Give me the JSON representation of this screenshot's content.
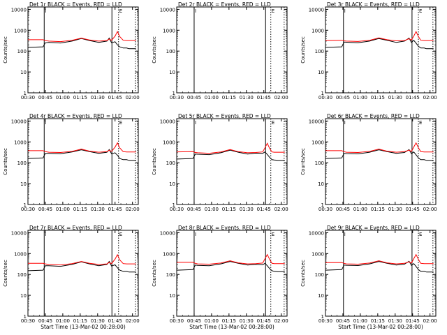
{
  "chart_data": {
    "type": "line",
    "layout": "grid 3x3",
    "x_ticks": [
      "00:30",
      "00:45",
      "01:00",
      "01:15",
      "01:30",
      "01:45",
      "02:00"
    ],
    "x_unit": "minutes after 00:28:00",
    "y_scale": "log",
    "y_ticks": [
      "1",
      "10",
      "100",
      "1000",
      "10000"
    ],
    "ylim": [
      1,
      13000
    ],
    "ylabel": "Counts/sec",
    "xlabel": "Start Time (13-Mar-02 00:28:00)",
    "series_colors": {
      "events": "#000000",
      "lld": "#ff0000"
    },
    "markers": {
      "left_label": "I",
      "right_label": "E"
    },
    "panels": [
      {
        "title": "Det 1r  BLACK = Events, RED = LLD",
        "has_data": true,
        "solid_lines": [
          16,
          74.3
        ],
        "dotted_lines": [
          80,
          94.5
        ],
        "show_xlabel": false,
        "x_data": [
          2,
          15,
          17,
          20,
          30,
          40,
          48,
          55,
          63,
          70,
          72,
          74,
          77,
          79,
          81,
          84,
          87,
          89,
          95
        ],
        "events": [
          150,
          160,
          250,
          260,
          245,
          300,
          400,
          320,
          260,
          300,
          420,
          250,
          280,
          200,
          160,
          140,
          140,
          130,
          130
        ],
        "lld": [
          350,
          350,
          320,
          300,
          285,
          330,
          420,
          340,
          300,
          320,
          380,
          330,
          520,
          860,
          500,
          330,
          320,
          320,
          320
        ]
      },
      {
        "title": "Det 2r  BLACK = Events, RED = LLD",
        "has_data": false,
        "solid_lines": [
          17,
          78.5
        ],
        "dotted_lines": [
          83,
          94.5
        ],
        "show_xlabel": false,
        "x_data": [],
        "events": [],
        "lld": []
      },
      {
        "title": "Det 3r  BLACK = Events, RED = LLD",
        "has_data": true,
        "solid_lines": [
          17.5,
          76.5
        ],
        "dotted_lines": [
          82,
          94.5
        ],
        "show_xlabel": false,
        "x_data": [
          2,
          16,
          18,
          20,
          30,
          40,
          48,
          55,
          63,
          70,
          74,
          76,
          78,
          80,
          82,
          84,
          87,
          89,
          95
        ],
        "events": [
          150,
          160,
          270,
          265,
          250,
          300,
          400,
          330,
          260,
          300,
          420,
          260,
          330,
          240,
          170,
          140,
          140,
          130,
          130
        ],
        "lld": [
          320,
          330,
          310,
          300,
          290,
          330,
          430,
          350,
          310,
          320,
          390,
          340,
          520,
          860,
          500,
          330,
          320,
          320,
          320
        ]
      },
      {
        "title": "Det 4r  BLACK = Events, RED = LLD",
        "has_data": true,
        "solid_lines": [
          16,
          74.3
        ],
        "dotted_lines": [
          80,
          94.5
        ],
        "show_xlabel": false,
        "x_data": [
          2,
          15,
          17,
          20,
          30,
          40,
          48,
          55,
          63,
          70,
          72,
          74,
          77,
          79,
          81,
          84,
          87,
          89,
          95
        ],
        "events": [
          160,
          170,
          280,
          280,
          270,
          330,
          420,
          340,
          280,
          320,
          430,
          270,
          300,
          230,
          160,
          140,
          140,
          130,
          130
        ],
        "lld": [
          380,
          380,
          340,
          320,
          310,
          350,
          450,
          360,
          320,
          340,
          400,
          350,
          560,
          900,
          520,
          340,
          330,
          330,
          330
        ]
      },
      {
        "title": "Det 5r  BLACK = Events, RED = LLD",
        "has_data": true,
        "solid_lines": [
          17,
          78.5
        ],
        "dotted_lines": [
          83,
          94.5
        ],
        "show_xlabel": false,
        "x_data": [
          2,
          16,
          18,
          20,
          30,
          40,
          48,
          55,
          63,
          70,
          76,
          78,
          80,
          82,
          84,
          86,
          89,
          95
        ],
        "events": [
          150,
          160,
          260,
          255,
          245,
          300,
          400,
          320,
          260,
          290,
          280,
          330,
          250,
          180,
          140,
          135,
          130,
          130
        ],
        "lld": [
          330,
          340,
          310,
          300,
          285,
          330,
          430,
          340,
          300,
          310,
          330,
          520,
          860,
          480,
          330,
          320,
          320,
          320
        ]
      },
      {
        "title": "Det 6r  BLACK = Events, RED = LLD",
        "has_data": true,
        "solid_lines": [
          17.5,
          76.5
        ],
        "dotted_lines": [
          82,
          94.5
        ],
        "show_xlabel": false,
        "x_data": [
          2,
          16,
          18,
          20,
          30,
          40,
          48,
          55,
          63,
          70,
          74,
          76,
          78,
          80,
          82,
          84,
          87,
          89,
          95
        ],
        "events": [
          160,
          170,
          280,
          275,
          265,
          320,
          420,
          340,
          280,
          310,
          430,
          270,
          330,
          240,
          170,
          140,
          140,
          130,
          130
        ],
        "lld": [
          380,
          380,
          340,
          320,
          310,
          350,
          450,
          360,
          320,
          340,
          400,
          350,
          560,
          900,
          520,
          340,
          330,
          330,
          330
        ]
      },
      {
        "title": "Det 7r  BLACK = Events, RED = LLD",
        "has_data": true,
        "solid_lines": [
          16,
          74.3
        ],
        "dotted_lines": [
          80,
          94.5
        ],
        "show_xlabel": true,
        "x_data": [
          2,
          15,
          17,
          20,
          30,
          40,
          48,
          55,
          63,
          70,
          72,
          74,
          77,
          79,
          81,
          84,
          87,
          89,
          95
        ],
        "events": [
          150,
          160,
          260,
          260,
          245,
          300,
          400,
          320,
          260,
          300,
          420,
          250,
          290,
          210,
          160,
          140,
          140,
          130,
          130
        ],
        "lld": [
          340,
          340,
          320,
          300,
          285,
          330,
          420,
          340,
          300,
          320,
          380,
          330,
          540,
          880,
          500,
          330,
          320,
          320,
          320
        ]
      },
      {
        "title": "Det 8r  BLACK = Events, RED = LLD",
        "has_data": true,
        "solid_lines": [
          17,
          78.5
        ],
        "dotted_lines": [
          83,
          94.5
        ],
        "show_xlabel": true,
        "x_data": [
          2,
          16,
          18,
          20,
          30,
          40,
          48,
          55,
          63,
          70,
          76,
          78,
          80,
          82,
          84,
          86,
          89,
          95
        ],
        "events": [
          160,
          170,
          280,
          270,
          260,
          320,
          420,
          340,
          280,
          300,
          290,
          340,
          260,
          190,
          150,
          140,
          135,
          135
        ],
        "lld": [
          380,
          380,
          340,
          320,
          310,
          350,
          450,
          360,
          320,
          330,
          350,
          560,
          900,
          520,
          340,
          330,
          330,
          330
        ]
      },
      {
        "title": "Det 9r  BLACK = Events, RED = LLD",
        "has_data": true,
        "solid_lines": [
          17.5,
          76.5
        ],
        "dotted_lines": [
          82,
          94.5
        ],
        "show_xlabel": true,
        "x_data": [
          2,
          16,
          18,
          20,
          30,
          40,
          48,
          55,
          63,
          70,
          74,
          76,
          78,
          80,
          82,
          84,
          87,
          89,
          95
        ],
        "events": [
          160,
          170,
          280,
          275,
          265,
          320,
          420,
          340,
          280,
          310,
          430,
          270,
          330,
          240,
          170,
          140,
          140,
          130,
          130
        ],
        "lld": [
          370,
          370,
          340,
          320,
          310,
          350,
          450,
          360,
          320,
          340,
          400,
          350,
          560,
          900,
          520,
          340,
          330,
          330,
          330
        ]
      }
    ]
  }
}
